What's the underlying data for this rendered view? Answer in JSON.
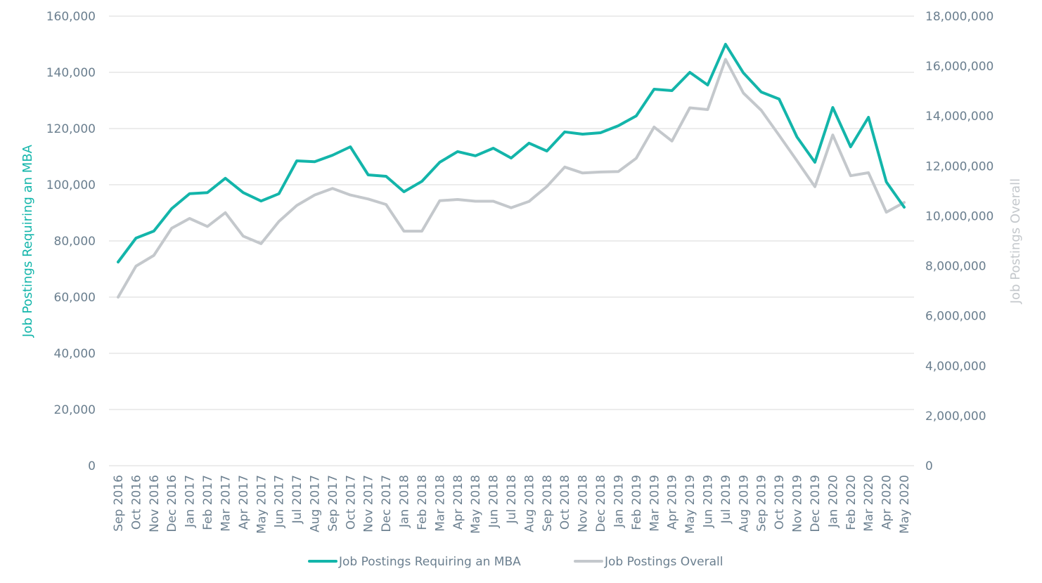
{
  "chart_data": {
    "type": "line",
    "title": "",
    "x": [
      "Sep 2016",
      "Oct 2016",
      "Nov 2016",
      "Dec 2016",
      "Jan 2017",
      "Feb 2017",
      "Mar 2017",
      "Apr 2017",
      "May 2017",
      "Jun 2017",
      "Jul 2017",
      "Aug 2017",
      "Sep 2017",
      "Oct 2017",
      "Nov 2017",
      "Dec 2017",
      "Jan 2018",
      "Feb 2018",
      "Mar 2018",
      "Apr 2018",
      "May 2018",
      "Jun 2018",
      "Jul 2018",
      "Aug 2018",
      "Sep 2018",
      "Oct 2018",
      "Nov 2018",
      "Dec 2018",
      "Jan 2019",
      "Feb 2019",
      "Mar 2019",
      "Apr 2019",
      "May 2019",
      "Jun 2019",
      "Jul 2019",
      "Aug 2019",
      "Sep 2019",
      "Oct 2019",
      "Nov 2019",
      "Dec 2019",
      "Jan 2020",
      "Feb 2020",
      "Mar 2020",
      "Apr 2020",
      "May 2020"
    ],
    "ylabel_left": "Job Postings Requiring an MBA",
    "ylabel_right": "Job Postings Overall",
    "ylim_left": [
      0,
      160000
    ],
    "ylim_right": [
      0,
      18000000
    ],
    "yticks_left": [
      "0",
      "20,000",
      "40,000",
      "60,000",
      "80,000",
      "100,000",
      "120,000",
      "140,000",
      "160,000"
    ],
    "yticks_right": [
      "0",
      "2,000,000",
      "4,000,000",
      "6,000,000",
      "8,000,000",
      "10,000,000",
      "12,000,000",
      "14,000,000",
      "16,000,000",
      "18,000,000"
    ],
    "grid": true,
    "legend_position": "bottom",
    "series": [
      {
        "name": "Job Postings Requiring an MBA",
        "axis": "left",
        "color": "#13b5aa",
        "values": [
          72500,
          81000,
          83500,
          91500,
          96800,
          97200,
          102300,
          97200,
          94200,
          96800,
          108500,
          108200,
          110500,
          113500,
          103500,
          103000,
          97500,
          101200,
          108000,
          111800,
          110300,
          113000,
          109500,
          114800,
          112000,
          118800,
          118000,
          118500,
          121000,
          124500,
          134000,
          133500,
          140000,
          135500,
          150000,
          139800,
          133000,
          130500,
          117000,
          108000,
          127500,
          113500,
          124000,
          101000,
          92000
        ]
      },
      {
        "name": "Job Postings Overall",
        "axis": "right",
        "color": "#c4c8cc",
        "values": [
          6750000,
          7990000,
          8420000,
          9510000,
          9900000,
          9580000,
          10130000,
          9190000,
          8890000,
          9780000,
          10420000,
          10840000,
          11100000,
          10840000,
          10680000,
          10460000,
          9390000,
          9390000,
          10610000,
          10660000,
          10590000,
          10590000,
          10330000,
          10580000,
          11180000,
          11960000,
          11720000,
          11760000,
          11780000,
          12310000,
          13560000,
          13000000,
          14330000,
          14260000,
          16270000,
          14920000,
          14230000,
          13230000,
          12210000,
          11170000,
          13240000,
          11610000,
          11730000,
          10150000,
          10540000
        ]
      }
    ]
  }
}
